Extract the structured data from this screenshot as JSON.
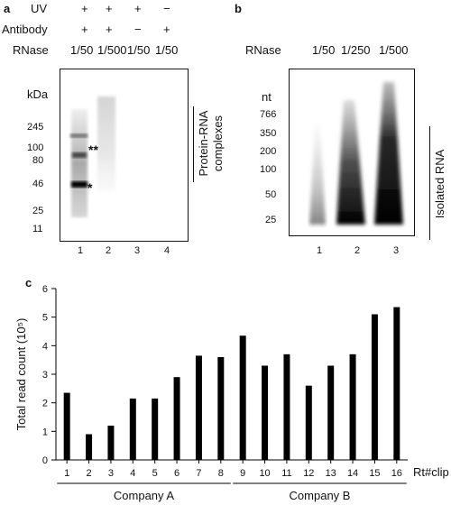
{
  "panel_a": {
    "letter": "a",
    "rows": [
      {
        "label": "UV",
        "values": [
          "+",
          "+",
          "+",
          "−"
        ]
      },
      {
        "label": "Antibody",
        "values": [
          "+",
          "+",
          "−",
          "+"
        ]
      }
    ],
    "rnase_label": "RNase",
    "rnase": [
      "1/50",
      "1/500",
      "1/50",
      "1/50"
    ],
    "unit": "kDa",
    "markers": [
      "245",
      "100",
      "80",
      "46",
      "25",
      "11"
    ],
    "lanes": [
      "1",
      "2",
      "3",
      "4"
    ],
    "band_marks": [
      "**",
      "*"
    ],
    "bracket_label_1": "Protein-RNA",
    "bracket_label_2": "complexes"
  },
  "panel_b": {
    "letter": "b",
    "rnase_label": "RNase",
    "rnase": [
      "1/50",
      "1/250",
      "1/500"
    ],
    "unit": "nt",
    "markers": [
      "766",
      "350",
      "200",
      "100",
      "50",
      "25"
    ],
    "lanes": [
      "1",
      "2",
      "3"
    ],
    "bracket_label": "Isolated RNA"
  },
  "chart_data": {
    "type": "bar",
    "panel_letter": "c",
    "categories": [
      "1",
      "2",
      "3",
      "4",
      "5",
      "6",
      "7",
      "8",
      "9",
      "10",
      "11",
      "12",
      "13",
      "14",
      "15",
      "16"
    ],
    "values": [
      2.35,
      0.9,
      1.2,
      2.15,
      2.15,
      2.9,
      3.65,
      3.6,
      4.35,
      3.3,
      3.7,
      2.6,
      3.3,
      3.7,
      5.1,
      5.35
    ],
    "ylabel": "Total read count (10⁵)",
    "xlabel": "Rt#clip",
    "ylim": [
      0,
      6
    ],
    "yticks": [
      "0",
      "1",
      "2",
      "3",
      "4",
      "5",
      "6"
    ],
    "grid": false,
    "groups": [
      {
        "label": "Company A",
        "from": 1,
        "to": 8
      },
      {
        "label": "Company B",
        "from": 9,
        "to": 16
      }
    ],
    "bar_color": "#000000"
  }
}
